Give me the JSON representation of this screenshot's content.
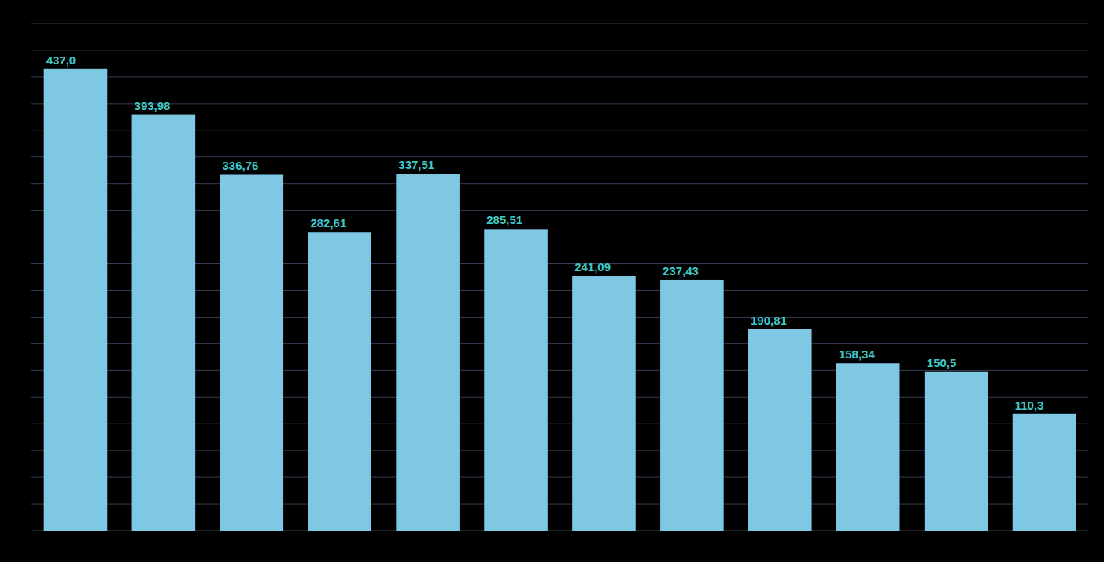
{
  "chart_data": {
    "type": "bar",
    "categories": [
      null,
      null,
      null,
      null,
      null,
      null,
      null,
      null,
      null,
      null,
      null,
      null
    ],
    "values": [
      437.0,
      393.98,
      336.76,
      282.61,
      337.51,
      285.51,
      241.09,
      237.43,
      190.81,
      158.34,
      150.5,
      110.3
    ],
    "value_labels": [
      "437,0",
      "393,98",
      "336,76",
      "282,61",
      "337,51",
      "285,51",
      "241,09",
      "237,43",
      "190,81",
      "158,34",
      "150,5",
      "110,3"
    ],
    "color": "#7EC8E3",
    "ylim": [
      0,
      480
    ],
    "yticks": [
      0,
      25.263157894736842,
      50.526315789473685,
      75.78947368421052,
      101.05263157894737,
      126.3157894736842,
      151.57894736842104,
      176.8421052631579,
      202.10526315789474,
      227.3684210526316,
      252.6315789473684,
      277.89473684210526,
      303.1578947368421,
      328.42105263157896,
      353.6842105263158,
      378.9473684210526,
      404.2105263157895,
      429.4736842105263,
      454.7368421052632,
      480
    ],
    "grid": true,
    "data_labels": true,
    "tick_labels": false
  }
}
